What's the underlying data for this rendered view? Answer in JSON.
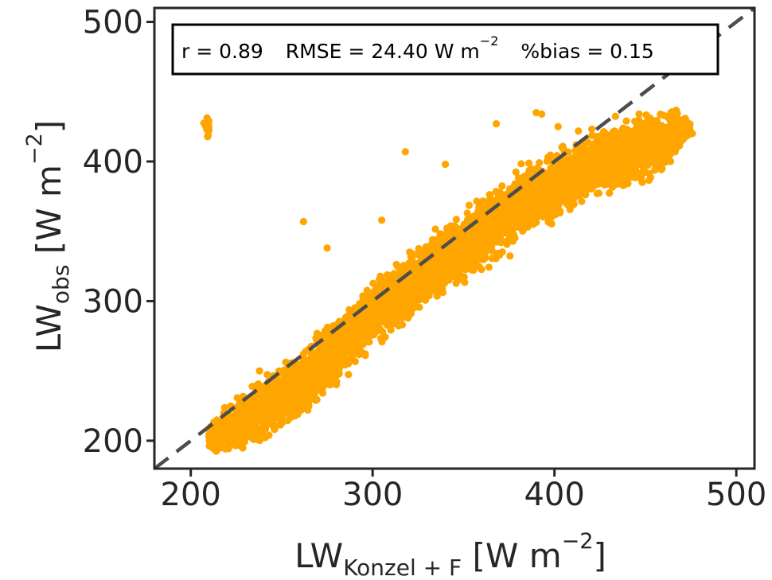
{
  "chart_data": {
    "type": "scatter",
    "xlim": [
      180,
      510
    ],
    "ylim": [
      180,
      510
    ],
    "xticks": [
      200,
      300,
      400,
      500
    ],
    "yticks": [
      200,
      300,
      400,
      500
    ],
    "grid": false,
    "xlabel": {
      "main": "LW",
      "sub": "Konzel + F",
      "unit_open": " [W m",
      "sup": "−2",
      "unit_close": "]"
    },
    "ylabel": {
      "main": "LW",
      "sub": "obs",
      "unit_open": " [W m",
      "sup": "−2",
      "unit_close": "]"
    },
    "stats": {
      "r": "r = 0.89",
      "rmse": "RMSE = 24.40 W m",
      "rmse_sup": "−2",
      "bias": "%bias = 0.15"
    },
    "reference_line": {
      "style": "dashed",
      "description": "1:1 line",
      "from": [
        180,
        180
      ],
      "to": [
        510,
        510
      ]
    },
    "point_cloud": {
      "description": "dense scatter around the 1:1 line",
      "centerline": [
        [
          210,
          202
        ],
        [
          230,
          215
        ],
        [
          260,
          240
        ],
        [
          300,
          290
        ],
        [
          340,
          330
        ],
        [
          380,
          368
        ],
        [
          420,
          398
        ],
        [
          460,
          415
        ],
        [
          473,
          425
        ]
      ],
      "approx_spread_y": 26,
      "outliers": [
        [
          262,
          357
        ],
        [
          275,
          338
        ],
        [
          305,
          358
        ],
        [
          318,
          407
        ],
        [
          340,
          398
        ],
        [
          368,
          427
        ],
        [
          390,
          435
        ],
        [
          393,
          434
        ],
        [
          402,
          425
        ],
        [
          370,
          378
        ],
        [
          394,
          392
        ],
        [
          300,
          282
        ],
        [
          283,
          263
        ],
        [
          272,
          260
        ]
      ]
    },
    "colors": {
      "points": "#FFA500",
      "reference_line": "#4D4D4D",
      "axes": "#262626"
    }
  }
}
